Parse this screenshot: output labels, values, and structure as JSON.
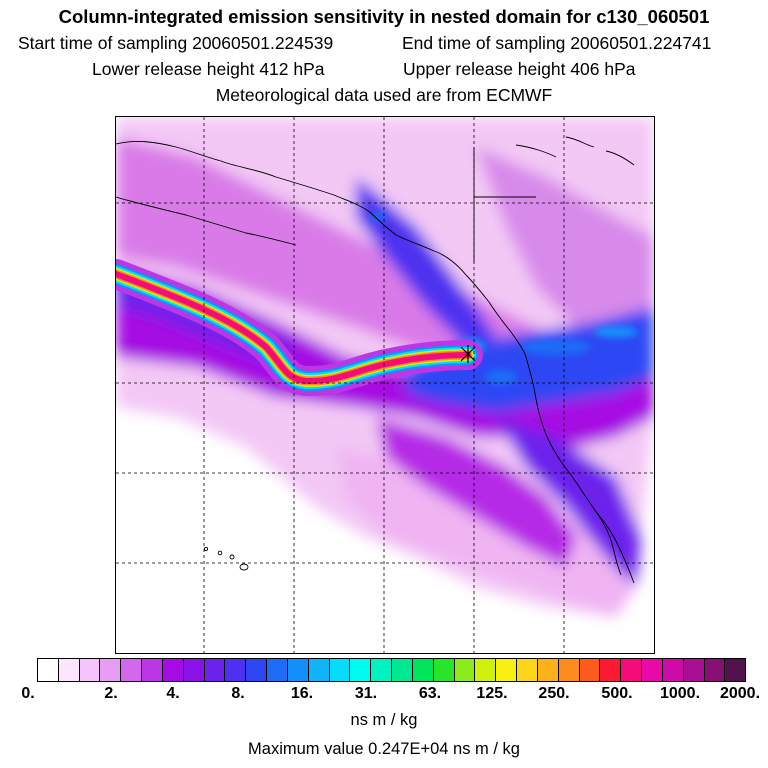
{
  "title": "Column-integrated emission sensitivity in nested domain for c130_060501",
  "header": {
    "start_label": "Start time of sampling 20060501.224539",
    "end_label": "End time of sampling 20060501.224741",
    "lower_label": "Lower release height  412 hPa",
    "upper_label": "Upper release height  406 hPa",
    "met_label": "Meteorological data used are from ECMWF"
  },
  "colorbar": {
    "colors": [
      "#ffffff",
      "#fde4ff",
      "#f6c4fa",
      "#e99cf3",
      "#d468eb",
      "#bd36e6",
      "#a60be3",
      "#8a12e6",
      "#6d22ec",
      "#4e30f0",
      "#2d46f4",
      "#1c6cf6",
      "#138ffa",
      "#0fb4fb",
      "#07dcfc",
      "#00fbf0",
      "#00f2c0",
      "#00e890",
      "#00e45a",
      "#27e529",
      "#8cec1b",
      "#d0f00d",
      "#f7f012",
      "#fcd51a",
      "#fcb11c",
      "#fb8c1d",
      "#fb5c1b",
      "#fa1b33",
      "#f40d78",
      "#e80aa8",
      "#cc0ba9",
      "#a90e93",
      "#871072",
      "#52124b"
    ],
    "ticks": [
      "0.",
      "2.",
      "4.",
      "8.",
      "16.",
      "31.",
      "63.",
      "125.",
      "250.",
      "500.",
      "1000.",
      "2000."
    ],
    "unit": "ns m / kg"
  },
  "max_value_label": "Maximum value  0.247E+04 ns m / kg",
  "map": {
    "release_marker": "release-point-star"
  }
}
